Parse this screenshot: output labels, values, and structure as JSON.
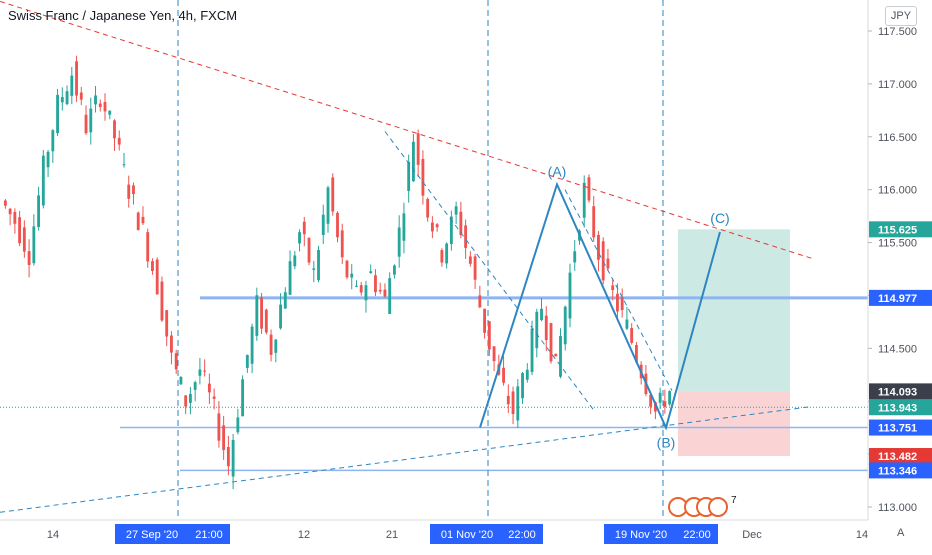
{
  "header": {
    "title": "Swiss Franc / Japanese Yen, 4h, FXCM",
    "currency": "JPY",
    "auto_label": "A"
  },
  "events": {
    "count": "7"
  },
  "colors": {
    "up": "#26a69a",
    "down": "#ef5350",
    "pattern": "#2e86c1",
    "resistance": "#e53935",
    "level": "#8eb4f2",
    "target_zone": "#cde9e4",
    "stop_zone": "#fad4d4",
    "highlight_label": "#2962ff"
  },
  "chart_data": {
    "type": "candlestick",
    "symbol": "Swiss Franc / Japanese Yen, 4h, FXCM",
    "ylim": [
      112.9,
      117.6
    ],
    "y_ticks": [
      "117.500",
      "117.000",
      "116.500",
      "116.000",
      "115.500",
      "115.000",
      "114.500",
      "114.000",
      "113.500",
      "113.000"
    ],
    "x_ticks": [
      "14",
      "27 Sep '20",
      "21:00",
      "12",
      "21",
      "01 Nov '20",
      "22:00",
      "19 Nov '20",
      "22:00",
      "Dec",
      "14"
    ],
    "price_labels": [
      {
        "text": "115.625",
        "price": 115.625,
        "color": "#26a69a"
      },
      {
        "text": "114.977",
        "price": 114.977,
        "color": "#2962ff"
      },
      {
        "text": "114.093",
        "price": 114.093,
        "color": "#3a3f4b"
      },
      {
        "text": "113.943",
        "price": 113.943,
        "color": "#26a69a"
      },
      {
        "text": "113.751",
        "price": 113.751,
        "color": "#2962ff"
      },
      {
        "text": "113.482",
        "price": 113.482,
        "color": "#e53935"
      },
      {
        "text": "113.346",
        "price": 113.346,
        "color": "#2962ff"
      }
    ],
    "horizontal_levels": [
      114.977,
      113.751,
      113.346
    ],
    "current_price": 113.943,
    "pattern_points": [
      {
        "label": "(A)",
        "price": 116.05
      },
      {
        "label": "(B)",
        "price": 113.75
      },
      {
        "label": "(C)",
        "price": 115.6
      }
    ],
    "trade_box": {
      "target": 115.625,
      "entry": 114.093,
      "stop": 113.482
    },
    "ohlc_segments": [
      {
        "open": 115.9,
        "close": 115.7
      },
      {
        "open": 115.7,
        "close": 115.4
      },
      {
        "open": 115.4,
        "close": 116.2
      },
      {
        "open": 116.2,
        "close": 116.8
      },
      {
        "open": 116.8,
        "close": 117.1
      },
      {
        "open": 117.1,
        "close": 116.6
      },
      {
        "open": 116.6,
        "close": 116.9
      },
      {
        "open": 116.9,
        "close": 116.5
      },
      {
        "open": 116.5,
        "close": 116.0
      },
      {
        "open": 116.0,
        "close": 115.6
      },
      {
        "open": 115.6,
        "close": 115.1
      },
      {
        "open": 115.1,
        "close": 114.4
      },
      {
        "open": 114.4,
        "close": 114.0
      },
      {
        "open": 114.0,
        "close": 114.3
      },
      {
        "open": 114.3,
        "close": 113.9
      },
      {
        "open": 113.9,
        "close": 113.4
      },
      {
        "open": 113.4,
        "close": 114.2
      },
      {
        "open": 114.2,
        "close": 114.9
      },
      {
        "open": 114.9,
        "close": 114.5
      },
      {
        "open": 114.5,
        "close": 115.1
      },
      {
        "open": 115.1,
        "close": 115.6
      },
      {
        "open": 115.6,
        "close": 115.2
      },
      {
        "open": 115.2,
        "close": 116.0
      },
      {
        "open": 116.0,
        "close": 115.3
      },
      {
        "open": 115.3,
        "close": 115.0
      },
      {
        "open": 115.0,
        "close": 115.2
      },
      {
        "open": 115.2,
        "close": 114.95
      },
      {
        "open": 114.95,
        "close": 115.6
      },
      {
        "open": 115.6,
        "close": 116.5
      },
      {
        "open": 116.5,
        "close": 115.8
      },
      {
        "open": 115.8,
        "close": 115.4
      },
      {
        "open": 115.4,
        "close": 115.8
      },
      {
        "open": 115.8,
        "close": 115.3
      },
      {
        "open": 115.3,
        "close": 114.7
      },
      {
        "open": 114.7,
        "close": 114.2
      },
      {
        "open": 114.2,
        "close": 113.9
      },
      {
        "open": 113.9,
        "close": 114.4
      },
      {
        "open": 114.4,
        "close": 114.9
      },
      {
        "open": 114.9,
        "close": 114.3
      },
      {
        "open": 114.3,
        "close": 115.2
      },
      {
        "open": 115.2,
        "close": 116.0
      },
      {
        "open": 116.0,
        "close": 115.4
      },
      {
        "open": 115.4,
        "close": 115.0
      },
      {
        "open": 115.0,
        "close": 114.7
      },
      {
        "open": 114.7,
        "close": 114.3
      },
      {
        "open": 114.3,
        "close": 113.9
      },
      {
        "open": 113.9,
        "close": 114.1
      }
    ]
  }
}
